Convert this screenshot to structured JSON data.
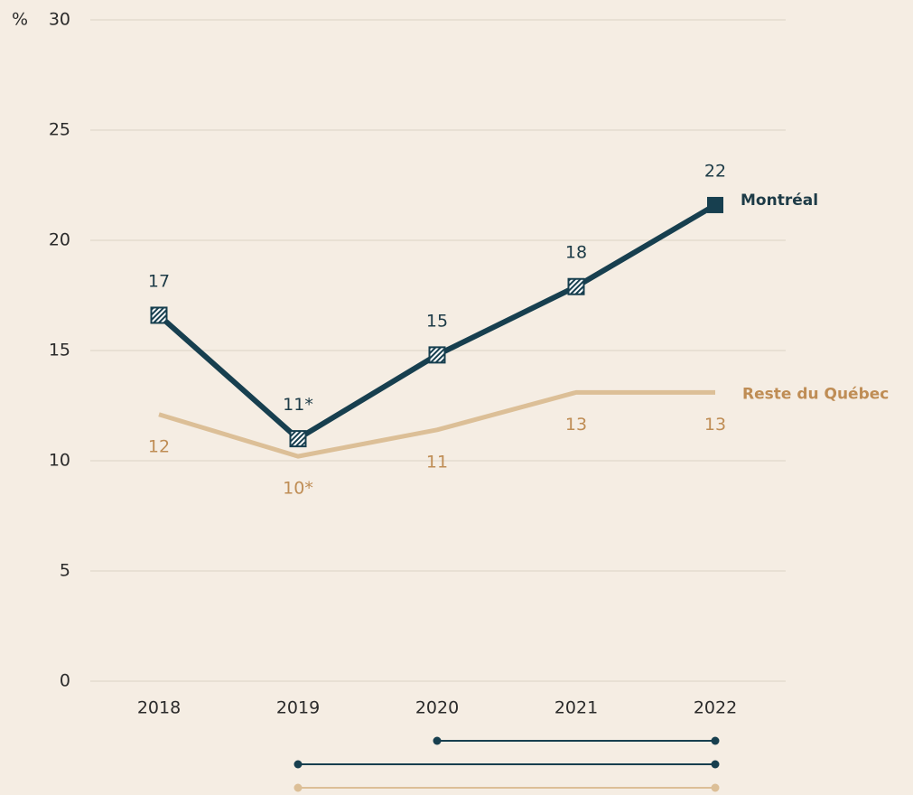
{
  "chart_data": {
    "type": "line",
    "y_axis_label": "%",
    "categories": [
      "2018",
      "2019",
      "2020",
      "2021",
      "2022"
    ],
    "ylim": [
      0,
      30
    ],
    "yticks": [
      0,
      5,
      10,
      15,
      20,
      25,
      30
    ],
    "grid": true,
    "series": [
      {
        "name": "Montréal",
        "color": "#173f4f",
        "label_color": "#1d3b47",
        "values": [
          16.6,
          11.0,
          14.8,
          17.9,
          21.6
        ],
        "value_labels": [
          "17",
          "11*",
          "15",
          "18",
          "22"
        ],
        "label_position": "above",
        "marker_styles": [
          "hatched",
          "hatched",
          "hatched",
          "hatched",
          "solid"
        ]
      },
      {
        "name": "Reste du Québec",
        "color": "#dcbf97",
        "label_color": "#bf8d55",
        "values": [
          12.1,
          10.2,
          11.4,
          13.1,
          13.1
        ],
        "value_labels": [
          "12",
          "10*",
          "11",
          "13",
          "13"
        ],
        "label_position": "below"
      }
    ],
    "comparisons": [
      {
        "series": "Montréal",
        "from": "2020",
        "to": "2022"
      },
      {
        "series": "Montréal",
        "from": "2019",
        "to": "2022"
      },
      {
        "series": "Reste du Québec",
        "from": "2019",
        "to": "2022"
      }
    ]
  }
}
